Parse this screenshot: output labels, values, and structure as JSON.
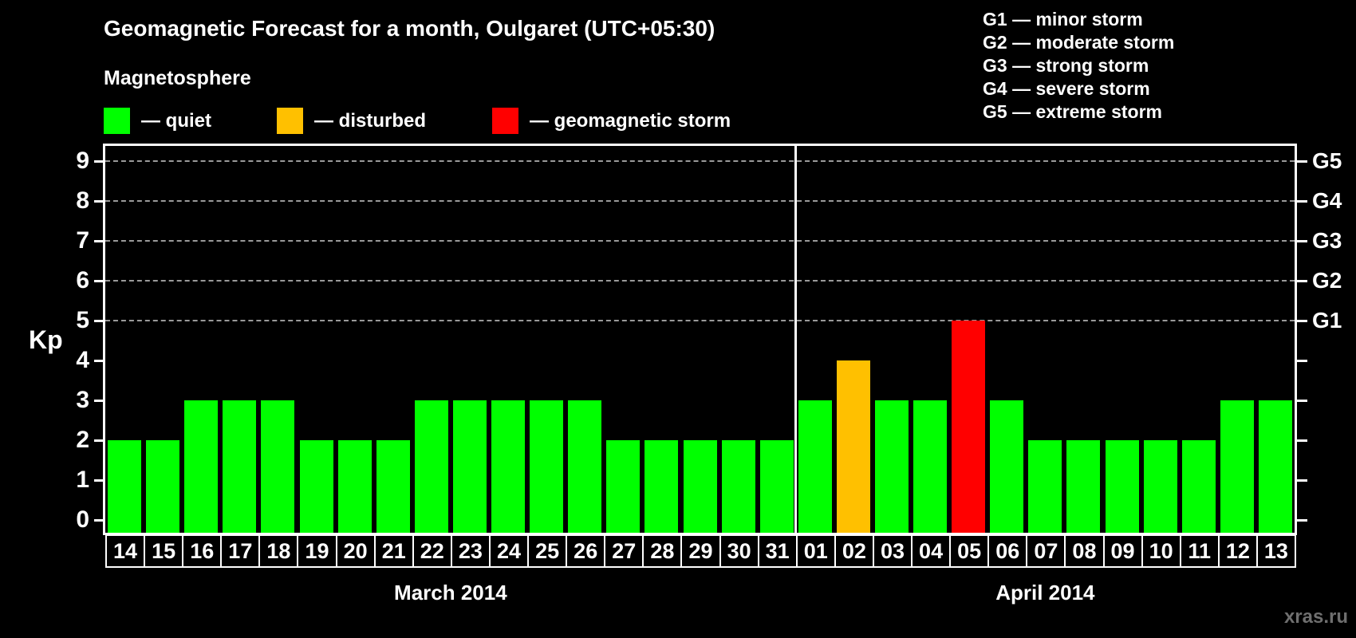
{
  "header": {
    "title": "Geomagnetic Forecast for a month, Oulgaret (UTC+05:30)"
  },
  "legend": {
    "title": "Magnetosphere",
    "items": [
      {
        "name": "quiet",
        "label": "— quiet",
        "color": "#00ff00"
      },
      {
        "name": "disturbed",
        "label": "— disturbed",
        "color": "#ffc000"
      },
      {
        "name": "storm",
        "label": "— geomagnetic storm",
        "color": "#ff0000"
      }
    ]
  },
  "storm_scale_legend": {
    "lines": [
      "G1 — minor storm",
      "G2 — moderate storm",
      "G3 — strong storm",
      "G4 — severe storm",
      "G5 — extreme storm"
    ]
  },
  "watermark": "xras.ru",
  "chart_data": {
    "type": "bar",
    "title": "Geomagnetic Forecast for a month, Oulgaret (UTC+05:30)",
    "ylabel": "Kp",
    "ylim": [
      0,
      9.7
    ],
    "yticks": [
      0,
      1,
      2,
      3,
      4,
      5,
      6,
      7,
      8,
      9
    ],
    "grid": "dashed horizontal lines at Kp 5-9 only",
    "gridlines_kp": [
      5,
      6,
      7,
      8,
      9
    ],
    "right_axis": [
      {
        "kp": 5,
        "label": "G1"
      },
      {
        "kp": 6,
        "label": "G2"
      },
      {
        "kp": 7,
        "label": "G3"
      },
      {
        "kp": 8,
        "label": "G4"
      },
      {
        "kp": 9,
        "label": "G5"
      }
    ],
    "state_colors": {
      "quiet": "#00ff00",
      "disturbed": "#ffc000",
      "storm": "#ff0000"
    },
    "groups": [
      {
        "label": "March 2014",
        "days": [
          {
            "day": "14",
            "kp": 2,
            "state": "quiet"
          },
          {
            "day": "15",
            "kp": 2,
            "state": "quiet"
          },
          {
            "day": "16",
            "kp": 3,
            "state": "quiet"
          },
          {
            "day": "17",
            "kp": 3,
            "state": "quiet"
          },
          {
            "day": "18",
            "kp": 3,
            "state": "quiet"
          },
          {
            "day": "19",
            "kp": 2,
            "state": "quiet"
          },
          {
            "day": "20",
            "kp": 2,
            "state": "quiet"
          },
          {
            "day": "21",
            "kp": 2,
            "state": "quiet"
          },
          {
            "day": "22",
            "kp": 3,
            "state": "quiet"
          },
          {
            "day": "23",
            "kp": 3,
            "state": "quiet"
          },
          {
            "day": "24",
            "kp": 3,
            "state": "quiet"
          },
          {
            "day": "25",
            "kp": 3,
            "state": "quiet"
          },
          {
            "day": "26",
            "kp": 3,
            "state": "quiet"
          },
          {
            "day": "27",
            "kp": 2,
            "state": "quiet"
          },
          {
            "day": "28",
            "kp": 2,
            "state": "quiet"
          },
          {
            "day": "29",
            "kp": 2,
            "state": "quiet"
          },
          {
            "day": "30",
            "kp": 2,
            "state": "quiet"
          },
          {
            "day": "31",
            "kp": 2,
            "state": "quiet"
          }
        ]
      },
      {
        "label": "April 2014",
        "days": [
          {
            "day": "01",
            "kp": 3,
            "state": "quiet"
          },
          {
            "day": "02",
            "kp": 4,
            "state": "disturbed"
          },
          {
            "day": "03",
            "kp": 3,
            "state": "quiet"
          },
          {
            "day": "04",
            "kp": 3,
            "state": "quiet"
          },
          {
            "day": "05",
            "kp": 5,
            "state": "storm"
          },
          {
            "day": "06",
            "kp": 3,
            "state": "quiet"
          },
          {
            "day": "07",
            "kp": 2,
            "state": "quiet"
          },
          {
            "day": "08",
            "kp": 2,
            "state": "quiet"
          },
          {
            "day": "09",
            "kp": 2,
            "state": "quiet"
          },
          {
            "day": "10",
            "kp": 2,
            "state": "quiet"
          },
          {
            "day": "11",
            "kp": 2,
            "state": "quiet"
          },
          {
            "day": "12",
            "kp": 3,
            "state": "quiet"
          },
          {
            "day": "13",
            "kp": 3,
            "state": "quiet"
          }
        ]
      }
    ]
  }
}
